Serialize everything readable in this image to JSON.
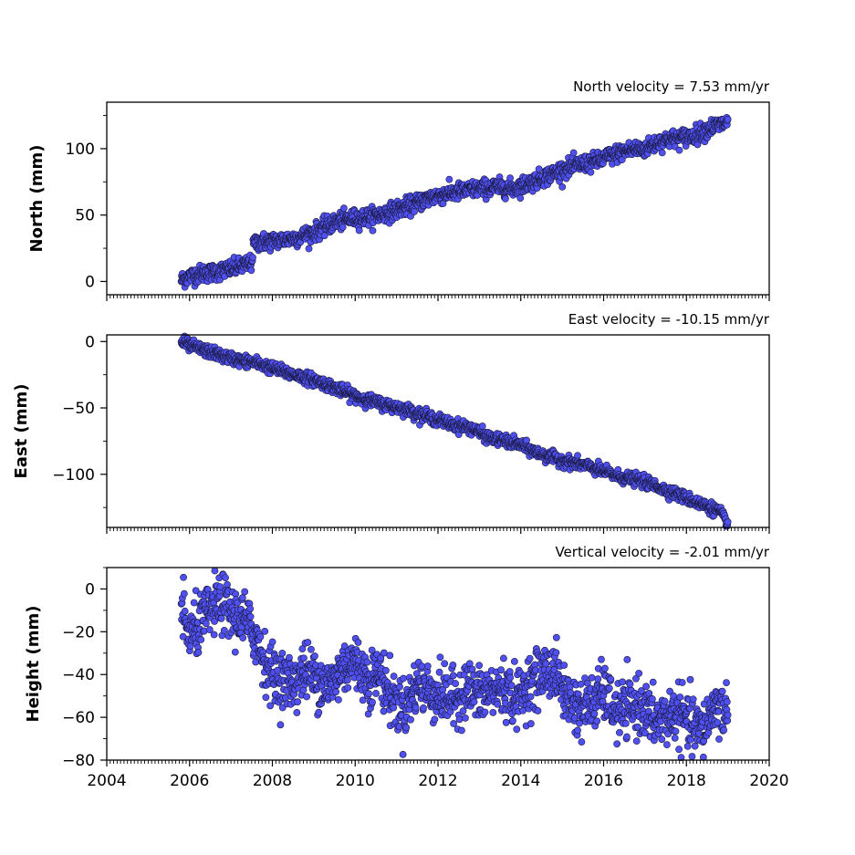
{
  "chart_data": [
    {
      "type": "scatter",
      "title": "North velocity = 7.53 mm/yr",
      "xlabel": "",
      "ylabel": "North (mm)",
      "xlim": [
        2004,
        2020
      ],
      "ylim": [
        -10,
        135
      ],
      "yticks": [
        0,
        50,
        100
      ],
      "xticks": [
        2004,
        2006,
        2008,
        2010,
        2012,
        2014,
        2016,
        2018,
        2020
      ],
      "show_xtick_labels": false,
      "grid": false,
      "color": "#5050f0",
      "series": [
        {
          "x": [
            2005.8,
            2006.0,
            2006.3,
            2006.6,
            2006.9,
            2007.2,
            2007.5,
            2007.55,
            2007.8,
            2008.2,
            2008.6,
            2009.0,
            2009.4,
            2009.8,
            2010.2,
            2010.6,
            2011.0,
            2011.4,
            2011.8,
            2012.2,
            2012.6,
            2013.0,
            2013.4,
            2013.8,
            2014.2,
            2014.6,
            2015.0,
            2015.4,
            2015.8,
            2016.2,
            2016.6,
            2017.0,
            2017.4,
            2017.8,
            2018.2,
            2018.6,
            2019.0
          ],
          "y": [
            1,
            4,
            6,
            7,
            9,
            11,
            14,
            29,
            30,
            31,
            33,
            37,
            43,
            47,
            48,
            50,
            54,
            58,
            63,
            66,
            68,
            70,
            71,
            70,
            74,
            79,
            84,
            88,
            90,
            95,
            99,
            100,
            106,
            108,
            110,
            116,
            120
          ]
        }
      ]
    },
    {
      "type": "scatter",
      "title": "East velocity = -10.15 mm/yr",
      "xlabel": "",
      "ylabel": "East (mm)",
      "xlim": [
        2004,
        2020
      ],
      "ylim": [
        -140,
        5
      ],
      "yticks": [
        0,
        -50,
        -100
      ],
      "xticks": [
        2004,
        2006,
        2008,
        2010,
        2012,
        2014,
        2016,
        2018,
        2020
      ],
      "show_xtick_labels": false,
      "grid": false,
      "color": "#5050f0",
      "series": [
        {
          "x": [
            2005.8,
            2006.0,
            2006.3,
            2006.6,
            2006.9,
            2007.2,
            2007.6,
            2008.0,
            2008.4,
            2008.8,
            2009.2,
            2009.6,
            2010.0,
            2010.4,
            2010.8,
            2011.2,
            2011.6,
            2012.0,
            2012.4,
            2012.8,
            2013.2,
            2013.6,
            2014.0,
            2014.4,
            2014.8,
            2015.2,
            2015.6,
            2016.0,
            2016.4,
            2016.8,
            2017.2,
            2017.6,
            2018.0,
            2018.4,
            2018.8,
            2019.0
          ],
          "y": [
            0,
            -3,
            -6,
            -9,
            -12,
            -14,
            -16,
            -20,
            -24,
            -27,
            -31,
            -36,
            -41,
            -45,
            -48,
            -51,
            -55,
            -59,
            -63,
            -65,
            -72,
            -75,
            -78,
            -84,
            -88,
            -91,
            -94,
            -98,
            -102,
            -104,
            -108,
            -113,
            -118,
            -123,
            -128,
            -138
          ]
        }
      ]
    },
    {
      "type": "scatter",
      "title": "Vertical velocity = -2.01 mm/yr",
      "xlabel": "",
      "ylabel": "Height (mm)",
      "xlim": [
        2004,
        2020
      ],
      "ylim": [
        -80,
        10
      ],
      "yticks": [
        0,
        -20,
        -40,
        -60,
        -80
      ],
      "xticks": [
        2004,
        2006,
        2008,
        2010,
        2012,
        2014,
        2016,
        2018,
        2020
      ],
      "xtick_labels": [
        "2004",
        "2006",
        "2008",
        "2010",
        "2012",
        "2014",
        "2016",
        "2018",
        "2020"
      ],
      "show_xtick_labels": true,
      "grid": false,
      "color": "#5050f0",
      "series": [
        {
          "x": [
            2005.8,
            2006.0,
            2006.2,
            2006.5,
            2006.8,
            2007.0,
            2007.3,
            2007.6,
            2007.9,
            2008.2,
            2008.5,
            2008.8,
            2009.1,
            2009.4,
            2009.7,
            2010.0,
            2010.3,
            2010.6,
            2010.9,
            2011.2,
            2011.5,
            2011.8,
            2012.1,
            2012.4,
            2012.7,
            2013.0,
            2013.3,
            2013.6,
            2013.9,
            2014.2,
            2014.5,
            2014.8,
            2015.1,
            2015.4,
            2015.7,
            2016.0,
            2016.3,
            2016.6,
            2016.9,
            2017.2,
            2017.5,
            2017.8,
            2018.1,
            2018.4,
            2018.7,
            2019.0
          ],
          "y": [
            -10,
            -22,
            -18,
            -10,
            -6,
            -12,
            -14,
            -22,
            -38,
            -42,
            -44,
            -38,
            -42,
            -46,
            -36,
            -34,
            -42,
            -40,
            -52,
            -56,
            -44,
            -48,
            -50,
            -52,
            -46,
            -50,
            -48,
            -46,
            -52,
            -44,
            -40,
            -38,
            -50,
            -56,
            -54,
            -48,
            -58,
            -56,
            -54,
            -62,
            -60,
            -58,
            -64,
            -66,
            -54,
            -58
          ]
        }
      ]
    }
  ]
}
